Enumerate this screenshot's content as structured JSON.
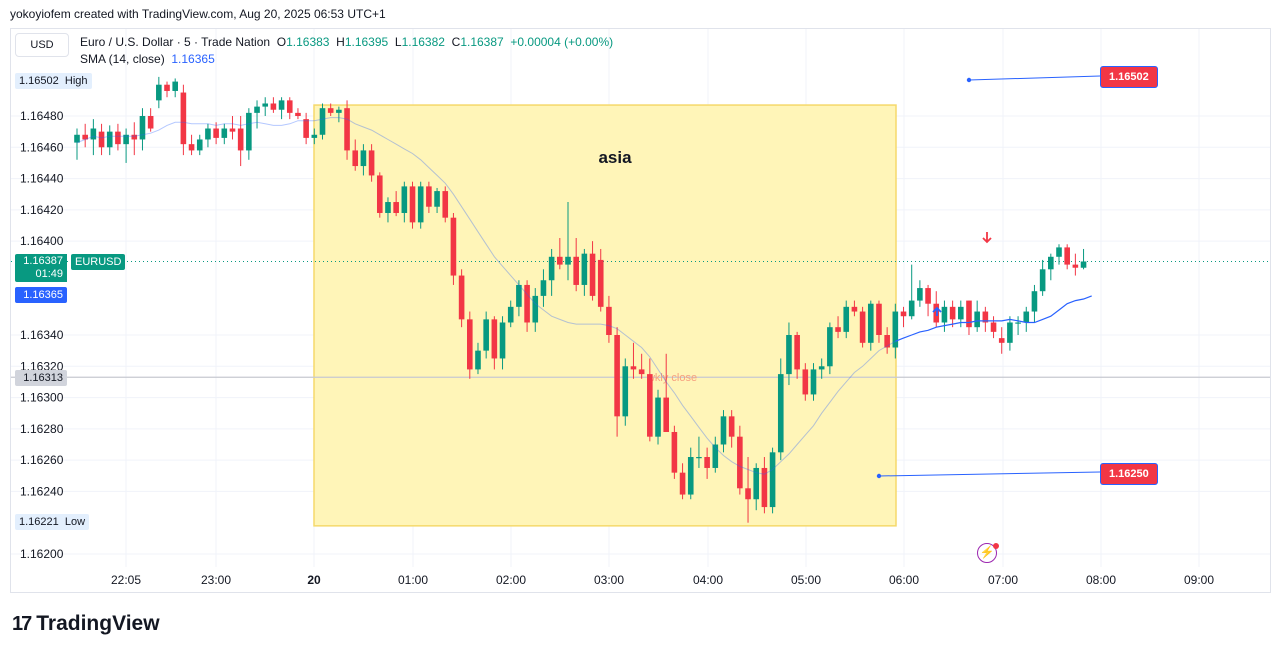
{
  "header": {
    "text": "yokoyiofem created with TradingView.com, Aug 20, 2025 06:53 UTC+1"
  },
  "currency_button": "USD",
  "legend": {
    "symbol": "Euro / U.S. Dollar · 5 · Trade Nation",
    "open_label": "O",
    "open": "1.16383",
    "high_label": "H",
    "high": "1.16395",
    "low_label": "L",
    "low": "1.16382",
    "close_label": "C",
    "close": "1.16387",
    "change": "+0.00004 (+0.00%)",
    "sma_label": "SMA (14, close)",
    "sma_value": "1.16365"
  },
  "price_tags": {
    "high_value": "1.16502",
    "high_label": "High",
    "low_value": "1.16221",
    "low_label": "Low",
    "current_value": "1.16387",
    "countdown": "01:49",
    "symbol": "EURUSD",
    "sma_value": "1.16365",
    "wkly_value": "1.16313"
  },
  "right_labels": {
    "upper": "1.16502",
    "lower": "1.16250"
  },
  "logo": "TradingView",
  "colors": {
    "up": "#089981",
    "down": "#f23645",
    "sma": "#2962ff",
    "box": "#fff5b8",
    "box_border": "#f5d96b"
  },
  "chart_data": {
    "type": "candlestick",
    "symbol": "EURUSD",
    "interval": "5",
    "ylim": [
      1.16195,
      1.16525
    ],
    "y_ticks": [
      "1.16480",
      "1.16460",
      "1.16440",
      "1.16420",
      "1.16400",
      "1.16340",
      "1.16320",
      "1.16300",
      "1.16280",
      "1.16260",
      "1.16240",
      "1.16200"
    ],
    "x_ticks": [
      "22:05",
      "23:00",
      "20",
      "01:00",
      "02:00",
      "03:00",
      "04:00",
      "05:00",
      "06:00",
      "07:00",
      "08:00",
      "09:00"
    ],
    "annotations": [
      {
        "type": "rectangle",
        "text": "asia",
        "from": "20:00",
        "to": "05:55",
        "top": 1.16487,
        "bottom": 1.16218
      },
      {
        "type": "horizontal_line",
        "text": "wkly close",
        "value": 1.16313
      },
      {
        "type": "trend_line",
        "value": 1.16502
      },
      {
        "type": "trend_line",
        "value": 1.1625
      }
    ],
    "candles": [
      {
        "o": 1.16463,
        "h": 1.16472,
        "l": 1.16452,
        "c": 1.16468
      },
      {
        "o": 1.16468,
        "h": 1.16475,
        "l": 1.1646,
        "c": 1.16465
      },
      {
        "o": 1.16465,
        "h": 1.16478,
        "l": 1.16455,
        "c": 1.16472
      },
      {
        "o": 1.1647,
        "h": 1.16475,
        "l": 1.16455,
        "c": 1.1646
      },
      {
        "o": 1.1646,
        "h": 1.16474,
        "l": 1.16455,
        "c": 1.1647
      },
      {
        "o": 1.1647,
        "h": 1.16475,
        "l": 1.16458,
        "c": 1.16462
      },
      {
        "o": 1.16462,
        "h": 1.16472,
        "l": 1.1645,
        "c": 1.16468
      },
      {
        "o": 1.16468,
        "h": 1.16476,
        "l": 1.16455,
        "c": 1.16465
      },
      {
        "o": 1.16465,
        "h": 1.16485,
        "l": 1.16458,
        "c": 1.1648
      },
      {
        "o": 1.1648,
        "h": 1.16485,
        "l": 1.1647,
        "c": 1.16472
      },
      {
        "o": 1.1649,
        "h": 1.16505,
        "l": 1.16485,
        "c": 1.165
      },
      {
        "o": 1.165,
        "h": 1.16502,
        "l": 1.16492,
        "c": 1.16496
      },
      {
        "o": 1.16496,
        "h": 1.16504,
        "l": 1.16492,
        "c": 1.16502
      },
      {
        "o": 1.16495,
        "h": 1.165,
        "l": 1.16455,
        "c": 1.16462
      },
      {
        "o": 1.16462,
        "h": 1.16468,
        "l": 1.16455,
        "c": 1.16458
      },
      {
        "o": 1.16458,
        "h": 1.16468,
        "l": 1.16455,
        "c": 1.16465
      },
      {
        "o": 1.16465,
        "h": 1.16475,
        "l": 1.1646,
        "c": 1.16472
      },
      {
        "o": 1.16472,
        "h": 1.16476,
        "l": 1.16462,
        "c": 1.16466
      },
      {
        "o": 1.16466,
        "h": 1.16475,
        "l": 1.16462,
        "c": 1.16472
      },
      {
        "o": 1.16472,
        "h": 1.1648,
        "l": 1.16465,
        "c": 1.1647
      },
      {
        "o": 1.16472,
        "h": 1.1648,
        "l": 1.16448,
        "c": 1.16458
      },
      {
        "o": 1.16458,
        "h": 1.16485,
        "l": 1.16452,
        "c": 1.16482
      },
      {
        "o": 1.16482,
        "h": 1.1649,
        "l": 1.16472,
        "c": 1.16486
      },
      {
        "o": 1.16486,
        "h": 1.16492,
        "l": 1.1648,
        "c": 1.16488
      },
      {
        "o": 1.16488,
        "h": 1.16492,
        "l": 1.16482,
        "c": 1.16484
      },
      {
        "o": 1.16484,
        "h": 1.16492,
        "l": 1.16478,
        "c": 1.1649
      },
      {
        "o": 1.1649,
        "h": 1.16492,
        "l": 1.16478,
        "c": 1.16482
      },
      {
        "o": 1.16482,
        "h": 1.16485,
        "l": 1.16478,
        "c": 1.1648
      },
      {
        "o": 1.16478,
        "h": 1.16482,
        "l": 1.16462,
        "c": 1.16466
      },
      {
        "o": 1.16466,
        "h": 1.16472,
        "l": 1.16462,
        "c": 1.16468
      },
      {
        "o": 1.16468,
        "h": 1.16488,
        "l": 1.16465,
        "c": 1.16485
      },
      {
        "o": 1.16485,
        "h": 1.16488,
        "l": 1.1648,
        "c": 1.16482
      },
      {
        "o": 1.16482,
        "h": 1.16486,
        "l": 1.16476,
        "c": 1.16484
      },
      {
        "o": 1.16485,
        "h": 1.1649,
        "l": 1.16452,
        "c": 1.16458
      },
      {
        "o": 1.16458,
        "h": 1.16465,
        "l": 1.16445,
        "c": 1.16448
      },
      {
        "o": 1.16448,
        "h": 1.16462,
        "l": 1.16442,
        "c": 1.16458
      },
      {
        "o": 1.16458,
        "h": 1.16462,
        "l": 1.16438,
        "c": 1.16442
      },
      {
        "o": 1.16442,
        "h": 1.16444,
        "l": 1.16415,
        "c": 1.16418
      },
      {
        "o": 1.16418,
        "h": 1.16428,
        "l": 1.16412,
        "c": 1.16425
      },
      {
        "o": 1.16425,
        "h": 1.16432,
        "l": 1.16416,
        "c": 1.16418
      },
      {
        "o": 1.16418,
        "h": 1.16438,
        "l": 1.16412,
        "c": 1.16435
      },
      {
        "o": 1.16435,
        "h": 1.16438,
        "l": 1.16408,
        "c": 1.16412
      },
      {
        "o": 1.16412,
        "h": 1.16438,
        "l": 1.16408,
        "c": 1.16435
      },
      {
        "o": 1.16435,
        "h": 1.16438,
        "l": 1.16418,
        "c": 1.16422
      },
      {
        "o": 1.16422,
        "h": 1.16434,
        "l": 1.16418,
        "c": 1.16432
      },
      {
        "o": 1.16432,
        "h": 1.16435,
        "l": 1.16412,
        "c": 1.16415
      },
      {
        "o": 1.16415,
        "h": 1.16418,
        "l": 1.16372,
        "c": 1.16378
      },
      {
        "o": 1.16378,
        "h": 1.16382,
        "l": 1.16345,
        "c": 1.1635
      },
      {
        "o": 1.1635,
        "h": 1.16355,
        "l": 1.16312,
        "c": 1.16318
      },
      {
        "o": 1.16318,
        "h": 1.16335,
        "l": 1.16315,
        "c": 1.1633
      },
      {
        "o": 1.1633,
        "h": 1.16355,
        "l": 1.16325,
        "c": 1.1635
      },
      {
        "o": 1.1635,
        "h": 1.16352,
        "l": 1.16318,
        "c": 1.16325
      },
      {
        "o": 1.16325,
        "h": 1.16352,
        "l": 1.16318,
        "c": 1.16348
      },
      {
        "o": 1.16348,
        "h": 1.16362,
        "l": 1.16345,
        "c": 1.16358
      },
      {
        "o": 1.16358,
        "h": 1.16375,
        "l": 1.16352,
        "c": 1.16372
      },
      {
        "o": 1.16372,
        "h": 1.16375,
        "l": 1.16342,
        "c": 1.16348
      },
      {
        "o": 1.16348,
        "h": 1.1637,
        "l": 1.16342,
        "c": 1.16365
      },
      {
        "o": 1.16365,
        "h": 1.16382,
        "l": 1.16358,
        "c": 1.16375
      },
      {
        "o": 1.16375,
        "h": 1.16395,
        "l": 1.16365,
        "c": 1.1639
      },
      {
        "o": 1.1639,
        "h": 1.16402,
        "l": 1.16382,
        "c": 1.16385
      },
      {
        "o": 1.16385,
        "h": 1.16425,
        "l": 1.16375,
        "c": 1.1639
      },
      {
        "o": 1.1639,
        "h": 1.16402,
        "l": 1.16368,
        "c": 1.16372
      },
      {
        "o": 1.16372,
        "h": 1.16395,
        "l": 1.16365,
        "c": 1.16392
      },
      {
        "o": 1.16392,
        "h": 1.164,
        "l": 1.16362,
        "c": 1.16365
      },
      {
        "o": 1.16388,
        "h": 1.16395,
        "l": 1.16355,
        "c": 1.16358
      },
      {
        "o": 1.16358,
        "h": 1.16365,
        "l": 1.16335,
        "c": 1.1634
      },
      {
        "o": 1.1634,
        "h": 1.16345,
        "l": 1.16275,
        "c": 1.16288
      },
      {
        "o": 1.16288,
        "h": 1.16325,
        "l": 1.16282,
        "c": 1.1632
      },
      {
        "o": 1.1632,
        "h": 1.16335,
        "l": 1.16312,
        "c": 1.16318
      },
      {
        "o": 1.16318,
        "h": 1.16328,
        "l": 1.16312,
        "c": 1.16315
      },
      {
        "o": 1.16315,
        "h": 1.16325,
        "l": 1.16272,
        "c": 1.16275
      },
      {
        "o": 1.16275,
        "h": 1.16305,
        "l": 1.1627,
        "c": 1.163
      },
      {
        "o": 1.163,
        "h": 1.16328,
        "l": 1.16278,
        "c": 1.16278
      },
      {
        "o": 1.16278,
        "h": 1.16282,
        "l": 1.16248,
        "c": 1.16252
      },
      {
        "o": 1.16252,
        "h": 1.16258,
        "l": 1.16235,
        "c": 1.16238
      },
      {
        "o": 1.16238,
        "h": 1.16268,
        "l": 1.16235,
        "c": 1.16262
      },
      {
        "o": 1.16262,
        "h": 1.16275,
        "l": 1.16255,
        "c": 1.16262
      },
      {
        "o": 1.16262,
        "h": 1.16268,
        "l": 1.16248,
        "c": 1.16255
      },
      {
        "o": 1.16255,
        "h": 1.16275,
        "l": 1.16252,
        "c": 1.1627
      },
      {
        "o": 1.1627,
        "h": 1.16292,
        "l": 1.16265,
        "c": 1.16288
      },
      {
        "o": 1.16288,
        "h": 1.16292,
        "l": 1.16268,
        "c": 1.16275
      },
      {
        "o": 1.16275,
        "h": 1.16282,
        "l": 1.16238,
        "c": 1.16242
      },
      {
        "o": 1.16242,
        "h": 1.16262,
        "l": 1.1622,
        "c": 1.16235
      },
      {
        "o": 1.16235,
        "h": 1.16258,
        "l": 1.16228,
        "c": 1.16255
      },
      {
        "o": 1.16255,
        "h": 1.16262,
        "l": 1.16226,
        "c": 1.1623
      },
      {
        "o": 1.1623,
        "h": 1.16268,
        "l": 1.16226,
        "c": 1.16265
      },
      {
        "o": 1.16265,
        "h": 1.16325,
        "l": 1.1626,
        "c": 1.16315
      },
      {
        "o": 1.16315,
        "h": 1.16348,
        "l": 1.16308,
        "c": 1.1634
      },
      {
        "o": 1.1634,
        "h": 1.16342,
        "l": 1.16312,
        "c": 1.16318
      },
      {
        "o": 1.16318,
        "h": 1.16322,
        "l": 1.16298,
        "c": 1.16302
      },
      {
        "o": 1.16302,
        "h": 1.16322,
        "l": 1.16298,
        "c": 1.16318
      },
      {
        "o": 1.16318,
        "h": 1.16325,
        "l": 1.16312,
        "c": 1.1632
      },
      {
        "o": 1.1632,
        "h": 1.16348,
        "l": 1.16315,
        "c": 1.16345
      },
      {
        "o": 1.16345,
        "h": 1.16352,
        "l": 1.16338,
        "c": 1.16342
      },
      {
        "o": 1.16342,
        "h": 1.16362,
        "l": 1.16338,
        "c": 1.16358
      },
      {
        "o": 1.16358,
        "h": 1.16362,
        "l": 1.16352,
        "c": 1.16355
      },
      {
        "o": 1.16355,
        "h": 1.16358,
        "l": 1.16332,
        "c": 1.16335
      },
      {
        "o": 1.16335,
        "h": 1.16362,
        "l": 1.1633,
        "c": 1.1636
      },
      {
        "o": 1.1636,
        "h": 1.16362,
        "l": 1.16335,
        "c": 1.1634
      },
      {
        "o": 1.1634,
        "h": 1.16345,
        "l": 1.16328,
        "c": 1.16332
      },
      {
        "o": 1.16332,
        "h": 1.1636,
        "l": 1.16325,
        "c": 1.16355
      },
      {
        "o": 1.16355,
        "h": 1.16358,
        "l": 1.16345,
        "c": 1.16352
      },
      {
        "o": 1.16352,
        "h": 1.16385,
        "l": 1.1635,
        "c": 1.16362
      },
      {
        "o": 1.16362,
        "h": 1.16375,
        "l": 1.16358,
        "c": 1.1637
      },
      {
        "o": 1.1637,
        "h": 1.16372,
        "l": 1.16352,
        "c": 1.1636
      },
      {
        "o": 1.1636,
        "h": 1.16368,
        "l": 1.16345,
        "c": 1.16348
      },
      {
        "o": 1.16348,
        "h": 1.16362,
        "l": 1.16342,
        "c": 1.16358
      },
      {
        "o": 1.16358,
        "h": 1.16362,
        "l": 1.16345,
        "c": 1.1635
      },
      {
        "o": 1.1635,
        "h": 1.16362,
        "l": 1.16345,
        "c": 1.16358
      },
      {
        "o": 1.16362,
        "h": 1.16362,
        "l": 1.1634,
        "c": 1.16345
      },
      {
        "o": 1.16345,
        "h": 1.16362,
        "l": 1.16342,
        "c": 1.16355
      },
      {
        "o": 1.16355,
        "h": 1.16358,
        "l": 1.16342,
        "c": 1.16348
      },
      {
        "o": 1.16348,
        "h": 1.16352,
        "l": 1.16338,
        "c": 1.16342
      },
      {
        "o": 1.16338,
        "h": 1.16345,
        "l": 1.16328,
        "c": 1.16335
      },
      {
        "o": 1.16335,
        "h": 1.16352,
        "l": 1.1633,
        "c": 1.16348
      },
      {
        "o": 1.16348,
        "h": 1.16352,
        "l": 1.1634,
        "c": 1.16348
      },
      {
        "o": 1.16348,
        "h": 1.16358,
        "l": 1.16342,
        "c": 1.16355
      },
      {
        "o": 1.16355,
        "h": 1.16372,
        "l": 1.16348,
        "c": 1.16368
      },
      {
        "o": 1.16368,
        "h": 1.16388,
        "l": 1.16365,
        "c": 1.16382
      },
      {
        "o": 1.16382,
        "h": 1.16392,
        "l": 1.16375,
        "c": 1.1639
      },
      {
        "o": 1.1639,
        "h": 1.16398,
        "l": 1.16385,
        "c": 1.16396
      },
      {
        "o": 1.16396,
        "h": 1.16398,
        "l": 1.16382,
        "c": 1.16385
      },
      {
        "o": 1.16385,
        "h": 1.16392,
        "l": 1.16378,
        "c": 1.16383
      },
      {
        "o": 1.16383,
        "h": 1.16395,
        "l": 1.16382,
        "c": 1.16387
      }
    ],
    "sma": [
      1.16463,
      1.16465,
      1.16467,
      1.16466,
      1.16467,
      1.16467,
      1.16467,
      1.16467,
      1.16468,
      1.16469,
      1.16471,
      1.16474,
      1.16476,
      1.16476,
      1.16475,
      1.16475,
      1.16475,
      1.16474,
      1.16475,
      1.16475,
      1.16474,
      1.16475,
      1.16476,
      1.16475,
      1.16474,
      1.16474,
      1.16475,
      1.16477,
      1.16477,
      1.16477,
      1.16478,
      1.16479,
      1.16479,
      1.16478,
      1.16475,
      1.16473,
      1.16471,
      1.16468,
      1.16465,
      1.16462,
      1.16459,
      1.16456,
      1.16452,
      1.16447,
      1.16442,
      1.16437,
      1.1643,
      1.16422,
      1.16414,
      1.16406,
      1.16398,
      1.1639,
      1.16384,
      1.16378,
      1.16372,
      1.16366,
      1.1636,
      1.16356,
      1.16352,
      1.1635,
      1.16348,
      1.16347,
      1.16347,
      1.16347,
      1.16347,
      1.16346,
      1.16344,
      1.1634,
      1.16336,
      1.16332,
      1.16326,
      1.16318,
      1.1631,
      1.16303,
      1.16295,
      1.16288,
      1.16281,
      1.16274,
      1.16268,
      1.16263,
      1.16259,
      1.16256,
      1.16254,
      1.16252,
      1.16251,
      1.16254,
      1.16259,
      1.16264,
      1.1627,
      1.16276,
      1.16282,
      1.1629,
      1.16297,
      1.16304,
      1.1631,
      1.16316,
      1.1632,
      1.16325,
      1.1633,
      1.16333,
      1.16336,
      1.16338,
      1.1634,
      1.16342,
      1.16343,
      1.16345,
      1.16346,
      1.16347,
      1.16348,
      1.16348,
      1.16349,
      1.16349,
      1.16349,
      1.16349,
      1.1635,
      1.16349,
      1.16348,
      1.16348,
      1.1635,
      1.16352,
      1.16356,
      1.1636,
      1.16362,
      1.16363,
      1.16365
    ]
  }
}
